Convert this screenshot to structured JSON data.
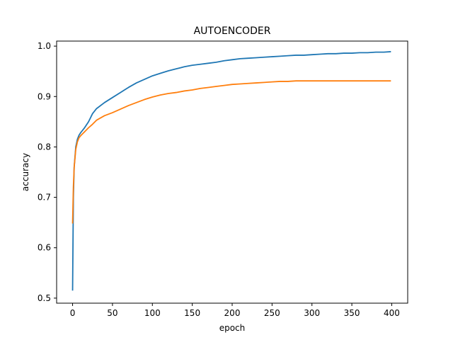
{
  "chart_data": {
    "type": "line",
    "title": "AUTOENCODER",
    "xlabel": "epoch",
    "ylabel": "accuracy",
    "xlim": [
      -20,
      420
    ],
    "ylim": [
      0.49,
      1.01
    ],
    "xticks": [
      0,
      50,
      100,
      150,
      200,
      250,
      300,
      350,
      400
    ],
    "yticks": [
      0.5,
      0.6,
      0.7,
      0.8,
      0.9,
      1.0
    ],
    "ytick_labels": [
      "0.5",
      "0.6",
      "0.7",
      "0.8",
      "0.9",
      "1.0"
    ],
    "grid": false,
    "legend": "none",
    "series": [
      {
        "color": "#1f77b4",
        "points": [
          [
            0,
            0.515
          ],
          [
            1,
            0.7
          ],
          [
            2,
            0.76
          ],
          [
            4,
            0.8
          ],
          [
            6,
            0.815
          ],
          [
            8,
            0.823
          ],
          [
            10,
            0.828
          ],
          [
            15,
            0.838
          ],
          [
            20,
            0.85
          ],
          [
            25,
            0.866
          ],
          [
            30,
            0.876
          ],
          [
            40,
            0.888
          ],
          [
            50,
            0.898
          ],
          [
            60,
            0.908
          ],
          [
            70,
            0.918
          ],
          [
            80,
            0.927
          ],
          [
            90,
            0.934
          ],
          [
            100,
            0.941
          ],
          [
            110,
            0.946
          ],
          [
            120,
            0.951
          ],
          [
            130,
            0.955
          ],
          [
            140,
            0.959
          ],
          [
            150,
            0.962
          ],
          [
            160,
            0.964
          ],
          [
            170,
            0.966
          ],
          [
            180,
            0.968
          ],
          [
            190,
            0.971
          ],
          [
            200,
            0.973
          ],
          [
            210,
            0.975
          ],
          [
            220,
            0.976
          ],
          [
            230,
            0.977
          ],
          [
            240,
            0.978
          ],
          [
            250,
            0.979
          ],
          [
            260,
            0.98
          ],
          [
            270,
            0.981
          ],
          [
            280,
            0.982
          ],
          [
            290,
            0.982
          ],
          [
            300,
            0.983
          ],
          [
            310,
            0.984
          ],
          [
            320,
            0.985
          ],
          [
            330,
            0.985
          ],
          [
            340,
            0.986
          ],
          [
            350,
            0.986
          ],
          [
            360,
            0.987
          ],
          [
            370,
            0.987
          ],
          [
            380,
            0.988
          ],
          [
            390,
            0.988
          ],
          [
            399,
            0.989
          ]
        ]
      },
      {
        "color": "#ff7f0e",
        "points": [
          [
            0,
            0.648
          ],
          [
            1,
            0.72
          ],
          [
            2,
            0.76
          ],
          [
            4,
            0.795
          ],
          [
            6,
            0.81
          ],
          [
            8,
            0.818
          ],
          [
            10,
            0.822
          ],
          [
            15,
            0.83
          ],
          [
            20,
            0.838
          ],
          [
            25,
            0.845
          ],
          [
            30,
            0.853
          ],
          [
            40,
            0.862
          ],
          [
            50,
            0.868
          ],
          [
            60,
            0.875
          ],
          [
            70,
            0.882
          ],
          [
            80,
            0.888
          ],
          [
            90,
            0.894
          ],
          [
            100,
            0.899
          ],
          [
            110,
            0.903
          ],
          [
            120,
            0.906
          ],
          [
            130,
            0.908
          ],
          [
            140,
            0.911
          ],
          [
            150,
            0.913
          ],
          [
            160,
            0.916
          ],
          [
            170,
            0.918
          ],
          [
            180,
            0.92
          ],
          [
            190,
            0.922
          ],
          [
            200,
            0.924
          ],
          [
            210,
            0.925
          ],
          [
            220,
            0.926
          ],
          [
            230,
            0.927
          ],
          [
            240,
            0.928
          ],
          [
            250,
            0.929
          ],
          [
            260,
            0.93
          ],
          [
            270,
            0.93
          ],
          [
            280,
            0.931
          ],
          [
            290,
            0.931
          ],
          [
            300,
            0.931
          ],
          [
            310,
            0.931
          ],
          [
            320,
            0.931
          ],
          [
            330,
            0.931
          ],
          [
            340,
            0.931
          ],
          [
            350,
            0.931
          ],
          [
            360,
            0.931
          ],
          [
            370,
            0.931
          ],
          [
            380,
            0.931
          ],
          [
            390,
            0.931
          ],
          [
            399,
            0.931
          ]
        ]
      }
    ]
  }
}
